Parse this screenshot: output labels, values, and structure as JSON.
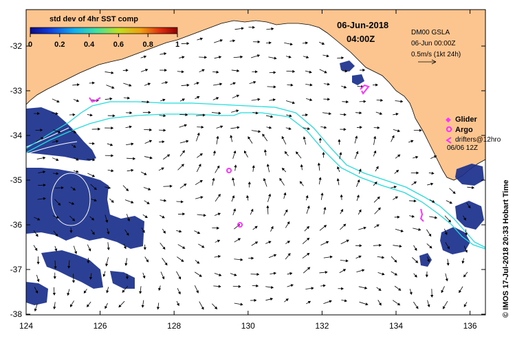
{
  "title": {
    "date": "06-Jun-2018",
    "time": "04:00Z"
  },
  "colorbar": {
    "title": "std dev of 4hr SST comp",
    "ticks": [
      "0",
      "0.2",
      "0.4",
      "0.6",
      "0.8",
      "1"
    ],
    "colors": [
      "#0a0a8a",
      "#1040e0",
      "#10b0f0",
      "#40e0a0",
      "#c0e020",
      "#f0a010",
      "#e03010",
      "#900000"
    ]
  },
  "info": {
    "line1": "DM00 GSLA",
    "line2": "06-Jun 00:00Z",
    "line3": "0.5m/s (1kt 24h)"
  },
  "legend": {
    "glider": "Glider",
    "argo": "Argo",
    "drifters": "drifters@12hro",
    "drifters_time": "06/06 12Z"
  },
  "credit": "© IMOS 17-Jul-2018 20:33 Hobart Time",
  "axes": {
    "x_ticks": [
      "124",
      "126",
      "128",
      "130",
      "132",
      "134",
      "136"
    ],
    "y_ticks": [
      "-32",
      "-33",
      "-34",
      "-35",
      "-36",
      "-37",
      "-38"
    ]
  },
  "colors": {
    "land": "#fcc58f",
    "track": "#22dddd",
    "marker": "#ff33ff",
    "sst": "#1a2f8c"
  }
}
